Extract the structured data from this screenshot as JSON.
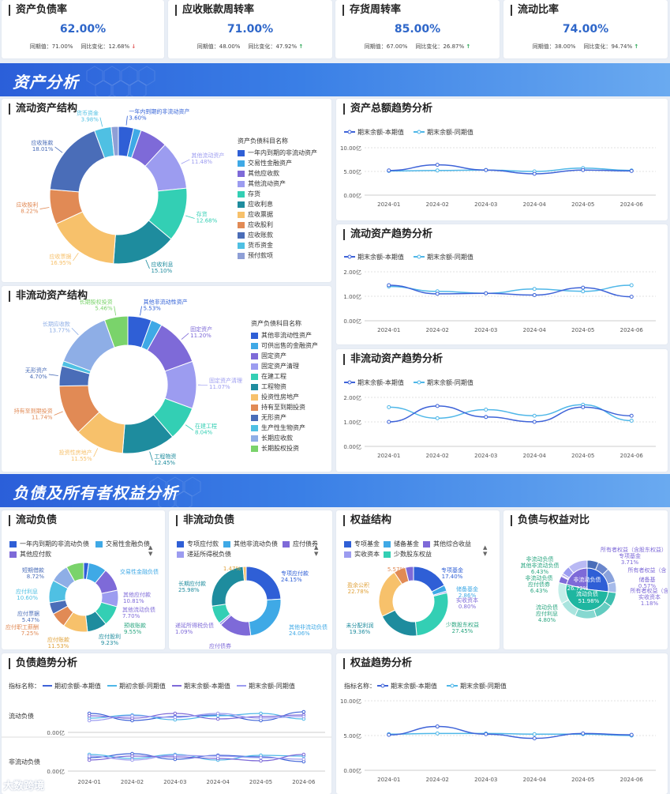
{
  "kpis": [
    {
      "title": "资产负债率",
      "value": "62.00%",
      "prev_label": "同期值：",
      "prev": "71.00%",
      "ratio_label": "同比变化：",
      "ratio": "12.68%",
      "dir": "down"
    },
    {
      "title": "应收账款周转率",
      "value": "71.00%",
      "prev_label": "同期值：",
      "prev": "48.00%",
      "ratio_label": "同比变化：",
      "ratio": "47.92%",
      "dir": "up"
    },
    {
      "title": "存货周转率",
      "value": "85.00%",
      "prev_label": "同期值：",
      "prev": "67.00%",
      "ratio_label": "同比变化：",
      "ratio": "26.87%",
      "dir": "up"
    },
    {
      "title": "流动比率",
      "value": "74.00%",
      "prev_label": "同期值：",
      "prev": "38.00%",
      "ratio_label": "同比变化：",
      "ratio": "94.74%",
      "dir": "up"
    }
  ],
  "banner1": "资产分析",
  "banner2": "负债及所有者权益分析",
  "months": [
    "2024-01",
    "2024-02",
    "2024-03",
    "2024-04",
    "2024-05",
    "2024-06"
  ],
  "legend_cur": "期末余额-本期值",
  "legend_prev": "期末余额-同期值",
  "colors": {
    "cur": "#3e63d8",
    "prev": "#4fb7e8"
  },
  "current_assets": {
    "title": "流动资产结构",
    "legend_title": "资产负债科目名称",
    "slices": [
      {
        "name": "一年内到期的非流动资产",
        "value": 3.6,
        "color": "#2f5fd6",
        "label": "一年内到期的非流动资产\n3.60%"
      },
      {
        "name": "交易性金融资产",
        "value": 1.8,
        "color": "#3fa9e6",
        "label": ""
      },
      {
        "name": "其他应收款",
        "value": 6.5,
        "color": "#7e6ad8",
        "label": ""
      },
      {
        "name": "其他流动资产",
        "value": 11.48,
        "color": "#9c9cf0",
        "label": "其他流动资产\n11.48%"
      },
      {
        "name": "存货",
        "value": 12.68,
        "color": "#33cfb4",
        "label": "存货\n12.68%"
      },
      {
        "name": "应收利息",
        "value": 15.1,
        "color": "#1e8c9e",
        "label": "应收利息\n15.10%"
      },
      {
        "name": "应收票据",
        "value": 16.95,
        "color": "#f7c16b",
        "label": "应收票据\n16.95%"
      },
      {
        "name": "应收股利",
        "value": 8.22,
        "color": "#e18a55",
        "label": "应收股利\n8.22%"
      },
      {
        "name": "应收账款",
        "value": 18.01,
        "color": "#4a6db8",
        "label": "应收账款\n18.01%"
      },
      {
        "name": "货币资金",
        "value": 3.98,
        "color": "#4fc0e3",
        "label": "货币资金\n3.98%"
      },
      {
        "name": "预付款项",
        "value": 1.68,
        "color": "#8e9fd6",
        "label": ""
      }
    ]
  },
  "noncurrent_assets": {
    "title": "非流动资产结构",
    "legend_title": "资产负债科目名称",
    "slices": [
      {
        "name": "其他非流动性资产",
        "value": 5.53,
        "color": "#2f5fd6",
        "label": "其他非流动性资产\n5.53%"
      },
      {
        "name": "可供出售的金融资产",
        "value": 2.6,
        "color": "#3fa9e6",
        "label": ""
      },
      {
        "name": "固定资产",
        "value": 11.2,
        "color": "#7e6ad8",
        "label": "固定资产\n11.20%"
      },
      {
        "name": "固定资产清理",
        "value": 11.07,
        "color": "#9c9cf0",
        "label": "固定资产清理\n11.07%"
      },
      {
        "name": "在建工程",
        "value": 8.04,
        "color": "#33cfb4",
        "label": "在建工程\n8.04%"
      },
      {
        "name": "工程物资",
        "value": 12.45,
        "color": "#1e8c9e",
        "label": "工程物资\n12.45%"
      },
      {
        "name": "投资性房地产",
        "value": 11.55,
        "color": "#f7c16b",
        "label": "投资性房地产\n11.55%"
      },
      {
        "name": "持有至到期投资",
        "value": 11.74,
        "color": "#e18a55",
        "label": "持有至到期投资\n11.74%"
      },
      {
        "name": "无形资产",
        "value": 4.7,
        "color": "#4a6db8",
        "label": "无形资产\n4.70%"
      },
      {
        "name": "生产性生物资产",
        "value": 1.2,
        "color": "#4fc0e3",
        "label": ""
      },
      {
        "name": "长期应收款",
        "value": 13.77,
        "color": "#8eaee6",
        "label": "长期应收款\n13.77%"
      },
      {
        "name": "长期股权投资",
        "value": 5.46,
        "color": "#7ad36b",
        "label": "长期股权投资\n5.46%"
      }
    ]
  },
  "total_trend": {
    "title": "资产总额趋势分析",
    "ticks": [
      "0.00亿",
      "5.00亿",
      "10.00亿"
    ],
    "ymax": 10,
    "cur": [
      5.2,
      6.4,
      5.3,
      4.5,
      5.3,
      5.1
    ],
    "prev": [
      5.1,
      5.2,
      5.3,
      5.0,
      5.7,
      5.2
    ]
  },
  "current_trend": {
    "title": "流动资产趋势分析",
    "ticks": [
      "0.00亿",
      "1.00亿",
      "2.00亿"
    ],
    "ymax": 2,
    "cur": [
      1.45,
      1.1,
      1.12,
      1.05,
      1.35,
      0.98
    ],
    "prev": [
      1.4,
      1.2,
      1.12,
      1.3,
      1.2,
      1.45
    ]
  },
  "noncurrent_trend": {
    "title": "非流动资产趋势分析",
    "ticks": [
      "0.00亿",
      "1.00亿",
      "2.00亿"
    ],
    "ymax": 2,
    "cur": [
      1.0,
      1.65,
      1.2,
      1.0,
      1.6,
      1.25
    ],
    "prev": [
      1.6,
      1.15,
      1.5,
      1.25,
      1.7,
      1.05
    ]
  },
  "current_liab": {
    "title": "流动负债",
    "legend": [
      {
        "name": "一年内到期的非流动负债",
        "color": "#2f5fd6"
      },
      {
        "name": "交易性金融负债",
        "color": "#3fa9e6"
      },
      {
        "name": "其他应付款",
        "color": "#7e6ad8"
      }
    ],
    "slices": [
      {
        "v": 2.4,
        "c": "#2f5fd6"
      },
      {
        "v": 8.5,
        "c": "#3fa9e6"
      },
      {
        "v": 10.81,
        "c": "#7e6ad8"
      },
      {
        "v": 7.7,
        "c": "#9c9cf0"
      },
      {
        "v": 9.55,
        "c": "#33cfb4"
      },
      {
        "v": 9.23,
        "c": "#1e8c9e"
      },
      {
        "v": 11.53,
        "c": "#f7c16b"
      },
      {
        "v": 7.25,
        "c": "#e18a55"
      },
      {
        "v": 5.47,
        "c": "#4a6db8"
      },
      {
        "v": 10.6,
        "c": "#4fc0e3"
      },
      {
        "v": 8.72,
        "c": "#8eaee6"
      },
      {
        "v": 8.2,
        "c": "#7ad36b"
      }
    ],
    "labels": [
      "短期借款\n8.72%",
      "应付利息\n10.60%",
      "应付职工薪酬\n7.25%",
      "应付票据\n5.47%",
      "应付账款\n11.53%",
      "应付股利\n9.23%",
      "预收账款\n9.55%",
      "其他流动负债\n7.70%",
      "其他应付款\n10.81%",
      "交易性金融负债"
    ]
  },
  "noncurrent_liab": {
    "title": "非流动负债",
    "legend": [
      {
        "name": "专项应付款",
        "color": "#2f5fd6"
      },
      {
        "name": "其他非流动负债",
        "color": "#3fa9e6"
      },
      {
        "name": "应付债券",
        "color": "#7e6ad8"
      },
      {
        "name": "递延所得税负债",
        "color": "#9c9cf0"
      }
    ],
    "slices": [
      {
        "v": 24.15,
        "c": "#2f5fd6"
      },
      {
        "v": 24.06,
        "c": "#3fa9e6"
      },
      {
        "v": 15.29,
        "c": "#7e6ad8"
      },
      {
        "v": 1.09,
        "c": "#9c9cf0"
      },
      {
        "v": 8.6,
        "c": "#33cfb4"
      },
      {
        "v": 25.98,
        "c": "#1e8c9e"
      },
      {
        "v": 1.47,
        "c": "#f7c16b"
      }
    ],
    "labels": [
      "专项应付款\n24.15%",
      "其他非流动负债\n24.06%",
      "应付债券\n15.29%",
      "递延所得税负债\n1.09%",
      "长期应付款\n25.98%",
      "1.47%"
    ]
  },
  "equity": {
    "title": "权益结构",
    "legend": [
      {
        "name": "专项基金",
        "color": "#2f5fd6"
      },
      {
        "name": "储备基金",
        "color": "#3fa9e6"
      },
      {
        "name": "其他综合收益",
        "color": "#7e6ad8"
      },
      {
        "name": "实收资本",
        "color": "#9c9cf0"
      },
      {
        "name": "少数股东权益",
        "color": "#33cfb4"
      }
    ],
    "slices": [
      {
        "v": 17.4,
        "c": "#2f5fd6"
      },
      {
        "v": 2.86,
        "c": "#3fa9e6"
      },
      {
        "v": 0.8,
        "c": "#9c9cf0"
      },
      {
        "v": 27.45,
        "c": "#33cfb4"
      },
      {
        "v": 19.36,
        "c": "#1e8c9e"
      },
      {
        "v": 22.78,
        "c": "#f7c16b"
      },
      {
        "v": 5.57,
        "c": "#e18a55"
      },
      {
        "v": 3.78,
        "c": "#7e6ad8"
      }
    ],
    "labels": [
      "专项基金\n17.40%",
      "储备基金\n2.86%",
      "实收资本\n0.80%",
      "少数股东权益\n27.45%",
      "未分配利润\n19.36%",
      "盈余公积\n22.78%",
      "5.57%"
    ]
  },
  "compare": {
    "title": "负债与权益对比",
    "inner": [
      {
        "name": "非流动负债",
        "value": "26.72%"
      },
      {
        "name": "流动负债",
        "value": "51.98%"
      }
    ],
    "labels": [
      "所有者权益（含股东权益）",
      "专项基金\n3.71%",
      "所有者权益（含",
      "储备基\n0.57%",
      "所有者权益（含\n实收资本\n1.18%",
      "非流动负债\n其他非流动负债\n6.43%",
      "非流动负债\n应付债券\n6.43%",
      "流动负债\n应付利息\n4.80%"
    ]
  },
  "liab_trend": {
    "title": "负债趋势分析",
    "indicator_label": "指标名称",
    "legend": [
      "期初余额-本期值",
      "期初余额-同期值",
      "期末余额-本期值",
      "期末余额-同期值"
    ],
    "rows": [
      "流动负债",
      "非流动负债"
    ],
    "ticks": [
      "0.00亿"
    ]
  },
  "equity_trend": {
    "title": "权益趋势分析",
    "indicator_label": "指标名称",
    "ticks": [
      "0.00亿",
      "5.00亿",
      "10.00亿"
    ],
    "ymax": 10,
    "cur": [
      5.1,
      6.3,
      5.2,
      4.6,
      5.3,
      5.1
    ],
    "prev": [
      5.2,
      5.3,
      5.3,
      5.2,
      5.2,
      5.0
    ]
  },
  "watermark": "大数跨境"
}
